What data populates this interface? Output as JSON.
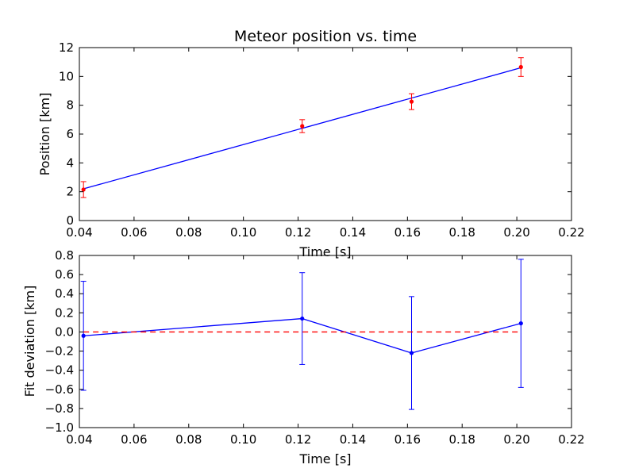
{
  "chart_data": [
    {
      "type": "line",
      "title": "Meteor position vs. time",
      "xlabel": "Time [s]",
      "ylabel": "Position [km]",
      "xlim": [
        0.04,
        0.22
      ],
      "ylim": [
        0,
        12
      ],
      "xticks": [
        "0.04",
        "0.06",
        "0.08",
        "0.10",
        "0.12",
        "0.14",
        "0.16",
        "0.18",
        "0.20",
        "0.22"
      ],
      "yticks": [
        "0",
        "2",
        "4",
        "6",
        "8",
        "10",
        "12"
      ],
      "series": [
        {
          "kind": "fit-line",
          "color": "#0000ff",
          "x": [
            0.0415,
            0.2015
          ],
          "y": [
            2.2,
            10.6
          ]
        },
        {
          "kind": "errorbar-points",
          "color": "#ff0000",
          "x": [
            0.0415,
            0.1215,
            0.1615,
            0.2015
          ],
          "y": [
            2.15,
            6.55,
            8.25,
            10.65
          ],
          "yerr": [
            0.55,
            0.45,
            0.55,
            0.65
          ]
        }
      ]
    },
    {
      "type": "line",
      "title": "",
      "xlabel": "Time [s]",
      "ylabel": "Fit deviation [km]",
      "xlim": [
        0.04,
        0.22
      ],
      "ylim": [
        -1.0,
        0.8
      ],
      "xticks": [
        "0.04",
        "0.06",
        "0.08",
        "0.10",
        "0.12",
        "0.14",
        "0.16",
        "0.18",
        "0.20",
        "0.22"
      ],
      "yticks": [
        "0.8",
        "0.6",
        "0.4",
        "0.2",
        "0.0",
        "−0.2",
        "−0.4",
        "−0.6",
        "−0.8",
        "−1.0"
      ],
      "series": [
        {
          "kind": "errorbar-line",
          "color": "#0000ff",
          "x": [
            0.0415,
            0.1215,
            0.1615,
            0.2015
          ],
          "y": [
            -0.04,
            0.14,
            -0.22,
            0.09
          ],
          "yerr": [
            0.57,
            0.48,
            0.59,
            0.67
          ]
        },
        {
          "kind": "reference-dashed",
          "color": "#ff0000",
          "x": [
            0.0415,
            0.2015
          ],
          "y": [
            0.0,
            0.0
          ]
        }
      ]
    }
  ]
}
